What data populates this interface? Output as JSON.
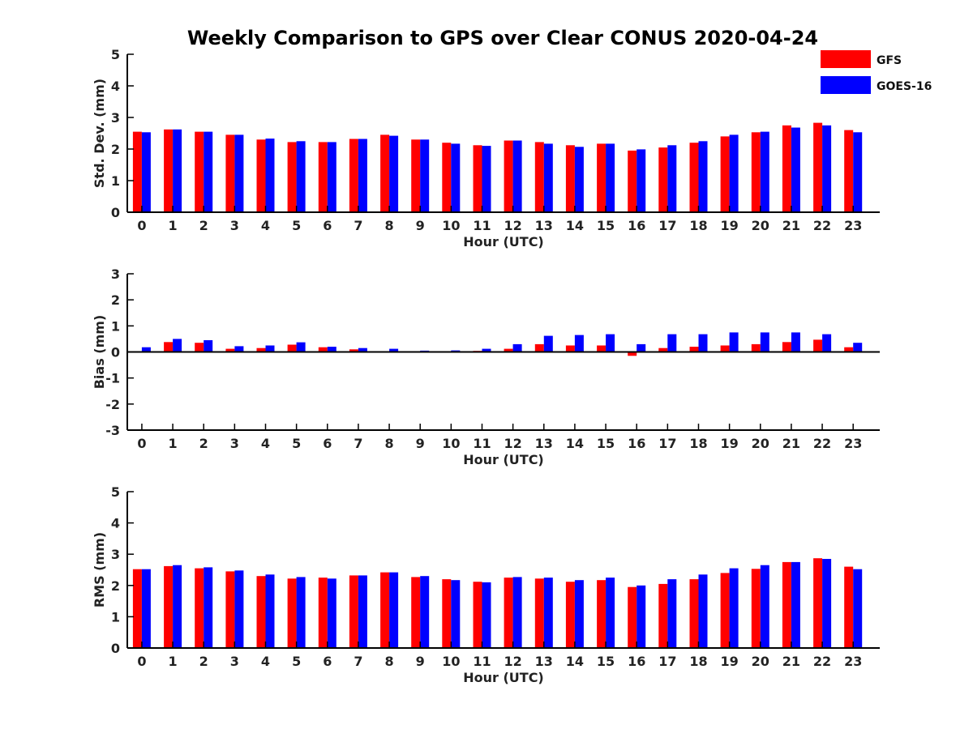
{
  "title": "Weekly Comparison to GPS over Clear CONUS 2020-04-24",
  "legend": {
    "placement": "top-right",
    "items": [
      "GFS",
      "GOES-16"
    ]
  },
  "colors": {
    "GFS": "#ff0000",
    "GOES-16": "#0000ff",
    "axis": "#000000"
  },
  "chart_data": [
    {
      "type": "bar",
      "categories": [
        "0",
        "1",
        "2",
        "3",
        "4",
        "5",
        "6",
        "7",
        "8",
        "9",
        "10",
        "11",
        "12",
        "13",
        "14",
        "15",
        "16",
        "17",
        "18",
        "19",
        "20",
        "21",
        "22",
        "23"
      ],
      "series": [
        {
          "name": "GFS",
          "values": [
            2.55,
            2.62,
            2.55,
            2.45,
            2.3,
            2.22,
            2.22,
            2.32,
            2.45,
            2.3,
            2.2,
            2.12,
            2.27,
            2.22,
            2.12,
            2.17,
            1.95,
            2.05,
            2.2,
            2.4,
            2.53,
            2.75,
            2.83,
            2.6
          ]
        },
        {
          "name": "GOES-16",
          "values": [
            2.53,
            2.62,
            2.55,
            2.45,
            2.33,
            2.25,
            2.22,
            2.32,
            2.42,
            2.3,
            2.17,
            2.1,
            2.27,
            2.17,
            2.07,
            2.17,
            1.99,
            2.12,
            2.25,
            2.45,
            2.55,
            2.68,
            2.75,
            2.53
          ]
        }
      ],
      "xlabel": "Hour (UTC)",
      "ylabel": "Std. Dev. (mm)",
      "ylim": [
        0,
        5
      ],
      "yticks": [
        "0",
        "1",
        "2",
        "3",
        "4",
        "5"
      ],
      "grid": false
    },
    {
      "type": "bar",
      "categories": [
        "0",
        "1",
        "2",
        "3",
        "4",
        "5",
        "6",
        "7",
        "8",
        "9",
        "10",
        "11",
        "12",
        "13",
        "14",
        "15",
        "16",
        "17",
        "18",
        "19",
        "20",
        "21",
        "22",
        "23"
      ],
      "series": [
        {
          "name": "GFS",
          "values": [
            0.02,
            0.38,
            0.35,
            0.12,
            0.15,
            0.28,
            0.18,
            0.1,
            0.03,
            0.02,
            0.02,
            0.04,
            0.12,
            0.3,
            0.25,
            0.25,
            -0.15,
            0.15,
            0.2,
            0.25,
            0.3,
            0.38,
            0.47,
            0.18
          ]
        },
        {
          "name": "GOES-16",
          "values": [
            0.18,
            0.5,
            0.45,
            0.22,
            0.25,
            0.37,
            0.2,
            0.15,
            0.12,
            0.05,
            0.06,
            0.12,
            0.3,
            0.62,
            0.65,
            0.68,
            0.3,
            0.68,
            0.68,
            0.75,
            0.75,
            0.75,
            0.68,
            0.35
          ]
        }
      ],
      "xlabel": "Hour (UTC)",
      "ylabel": "Bias (mm)",
      "ylim": [
        -3,
        3
      ],
      "yticks": [
        "-3",
        "-2",
        "-1",
        "0",
        "1",
        "2",
        "3"
      ],
      "grid": false
    },
    {
      "type": "bar",
      "categories": [
        "0",
        "1",
        "2",
        "3",
        "4",
        "5",
        "6",
        "7",
        "8",
        "9",
        "10",
        "11",
        "12",
        "13",
        "14",
        "15",
        "16",
        "17",
        "18",
        "19",
        "20",
        "21",
        "22",
        "23"
      ],
      "series": [
        {
          "name": "GFS",
          "values": [
            2.52,
            2.62,
            2.55,
            2.45,
            2.3,
            2.22,
            2.25,
            2.32,
            2.42,
            2.27,
            2.2,
            2.12,
            2.25,
            2.22,
            2.12,
            2.17,
            1.95,
            2.05,
            2.2,
            2.4,
            2.53,
            2.75,
            2.87,
            2.6
          ]
        },
        {
          "name": "GOES-16",
          "values": [
            2.52,
            2.65,
            2.58,
            2.48,
            2.35,
            2.27,
            2.22,
            2.32,
            2.42,
            2.3,
            2.17,
            2.1,
            2.27,
            2.25,
            2.17,
            2.25,
            2.0,
            2.2,
            2.35,
            2.55,
            2.65,
            2.75,
            2.85,
            2.52
          ]
        }
      ],
      "xlabel": "Hour (UTC)",
      "ylabel": "RMS (mm)",
      "ylim": [
        0,
        5
      ],
      "yticks": [
        "0",
        "1",
        "2",
        "3",
        "4",
        "5"
      ],
      "grid": false
    }
  ]
}
